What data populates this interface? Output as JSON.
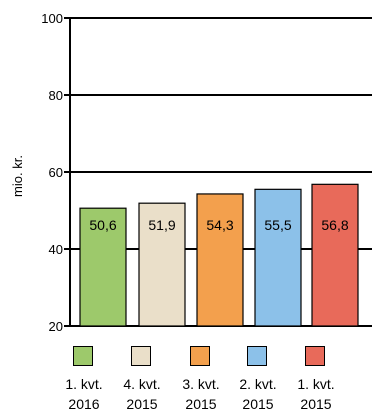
{
  "chart_data": {
    "type": "bar",
    "ylabel": "mio. kr.",
    "ylim": [
      20,
      100
    ],
    "yticks": [
      "20",
      "40",
      "60",
      "80",
      "100"
    ],
    "categories": [
      {
        "line1": "1. kvt.",
        "line2": "2016"
      },
      {
        "line1": "4. kvt.",
        "line2": "2015"
      },
      {
        "line1": "3. kvt.",
        "line2": "2015"
      },
      {
        "line1": "2. kvt.",
        "line2": "2015"
      },
      {
        "line1": "1. kvt.",
        "line2": "2015"
      }
    ],
    "values": [
      50.6,
      51.9,
      54.3,
      55.5,
      56.8
    ],
    "value_labels": [
      "50,6",
      "51,9",
      "54,3",
      "55,5",
      "56,8"
    ],
    "colors": [
      "#9dc96b",
      "#eadfc9",
      "#f3a04d",
      "#8cc1e9",
      "#e86a5a"
    ],
    "gridlines": true,
    "legend_position": "bottom"
  }
}
